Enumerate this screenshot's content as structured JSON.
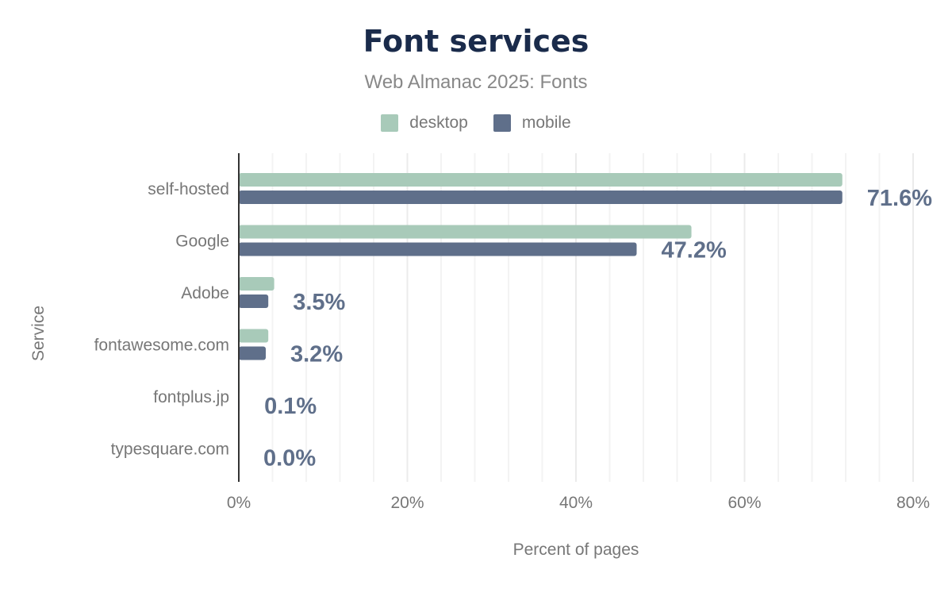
{
  "chart_data": {
    "type": "bar",
    "orientation": "horizontal",
    "title": "Font services",
    "subtitle": "Web Almanac 2025: Fonts",
    "xlabel": "Percent of pages",
    "ylabel": "Service",
    "categories": [
      "self-hosted",
      "Google",
      "Adobe",
      "fontawesome.com",
      "fontplus.jp",
      "typesquare.com"
    ],
    "series": [
      {
        "name": "desktop",
        "color": "#a8cab9",
        "values": [
          71.6,
          53.7,
          4.2,
          3.5,
          0.1,
          0.0
        ]
      },
      {
        "name": "mobile",
        "color": "#5f6f8a",
        "values": [
          71.6,
          47.2,
          3.5,
          3.2,
          0.1,
          0.0
        ]
      }
    ],
    "data_labels": [
      "71.6%",
      "47.2%",
      "3.5%",
      "3.2%",
      "0.1%",
      "0.0%"
    ],
    "xlim": [
      0,
      80
    ],
    "xticks": [
      "0%",
      "20%",
      "40%",
      "60%",
      "80%"
    ],
    "grid": true,
    "legend": "top-center"
  }
}
